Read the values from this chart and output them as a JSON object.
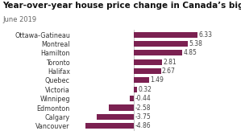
{
  "title": "Year-over-year house price change in Canada’s biggest cities",
  "subtitle": "June 2019",
  "categories": [
    "Ottawa-Gatineau",
    "Montreal",
    "Hamilton",
    "Toronto",
    "Halifax",
    "Quebec",
    "Victoria",
    "Winnipeg",
    "Edmonton",
    "Calgary",
    "Vancouver"
  ],
  "values": [
    6.33,
    5.38,
    4.85,
    2.81,
    2.67,
    1.49,
    0.32,
    -0.44,
    -2.58,
    -3.75,
    -4.86
  ],
  "bar_color": "#7b2151",
  "background_color": "#ffffff",
  "title_fontsize": 7.5,
  "subtitle_fontsize": 6.0,
  "label_fontsize": 5.8,
  "value_fontsize": 5.5,
  "xlim": [
    -6.2,
    9.5
  ]
}
